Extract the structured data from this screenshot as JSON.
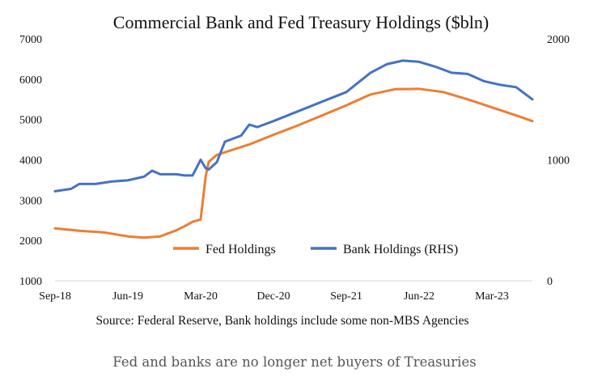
{
  "chart_data": {
    "type": "line",
    "title": "Commercial Bank and Fed Treasury Holdings ($bln)",
    "source": "Source: Federal Reserve, Bank holdings include some non-MBS Agencies",
    "x_tick_labels": [
      "Sep-18",
      "Jun-19",
      "Mar-20",
      "Dec-20",
      "Sep-21",
      "Jun-22",
      "Mar-23"
    ],
    "x_range": [
      "2018-09",
      "2023-08"
    ],
    "y_left": {
      "ticks": [
        "7000",
        "6000",
        "5000",
        "4000",
        "3000",
        "2000",
        "1000"
      ],
      "range": [
        1000,
        7000
      ]
    },
    "y_right": {
      "ticks": [
        "2000",
        "1000",
        "0"
      ],
      "range": [
        0,
        2000
      ]
    },
    "legend_position": "lower-middle",
    "series": [
      {
        "name": "Fed Holdings",
        "axis": "left",
        "color": "#ED7D31",
        "points": [
          [
            "2018-09",
            2300
          ],
          [
            "2018-12",
            2240
          ],
          [
            "2019-03",
            2200
          ],
          [
            "2019-06",
            2100
          ],
          [
            "2019-08",
            2070
          ],
          [
            "2019-10",
            2100
          ],
          [
            "2019-12",
            2250
          ],
          [
            "2020-01",
            2350
          ],
          [
            "2020-02",
            2460
          ],
          [
            "2020-03",
            2520
          ],
          [
            "2020-03-20",
            3600
          ],
          [
            "2020-04",
            3950
          ],
          [
            "2020-05",
            4120
          ],
          [
            "2020-07",
            4250
          ],
          [
            "2020-09",
            4380
          ],
          [
            "2020-12",
            4620
          ],
          [
            "2021-03",
            4850
          ],
          [
            "2021-06",
            5100
          ],
          [
            "2021-09",
            5350
          ],
          [
            "2021-12",
            5620
          ],
          [
            "2022-03",
            5750
          ],
          [
            "2022-06",
            5760
          ],
          [
            "2022-09",
            5680
          ],
          [
            "2022-12",
            5500
          ],
          [
            "2023-03",
            5300
          ],
          [
            "2023-06",
            5100
          ],
          [
            "2023-08",
            4960
          ]
        ]
      },
      {
        "name": "Bank Holdings (RHS)",
        "axis": "right",
        "color": "#4472C4",
        "points": [
          [
            "2018-09",
            740
          ],
          [
            "2018-11",
            760
          ],
          [
            "2018-12",
            800
          ],
          [
            "2019-02",
            800
          ],
          [
            "2019-04",
            820
          ],
          [
            "2019-06",
            830
          ],
          [
            "2019-08",
            860
          ],
          [
            "2019-09",
            910
          ],
          [
            "2019-10",
            880
          ],
          [
            "2019-12",
            880
          ],
          [
            "2020-01",
            870
          ],
          [
            "2020-02",
            870
          ],
          [
            "2020-03",
            1000
          ],
          [
            "2020-03-20",
            930
          ],
          [
            "2020-04",
            920
          ],
          [
            "2020-05",
            980
          ],
          [
            "2020-06",
            1150
          ],
          [
            "2020-08",
            1200
          ],
          [
            "2020-09",
            1290
          ],
          [
            "2020-10",
            1270
          ],
          [
            "2020-12",
            1320
          ],
          [
            "2021-03",
            1400
          ],
          [
            "2021-06",
            1480
          ],
          [
            "2021-09",
            1560
          ],
          [
            "2021-12",
            1720
          ],
          [
            "2022-02",
            1790
          ],
          [
            "2022-04",
            1820
          ],
          [
            "2022-06",
            1810
          ],
          [
            "2022-08",
            1770
          ],
          [
            "2022-10",
            1720
          ],
          [
            "2022-12",
            1710
          ],
          [
            "2023-02",
            1650
          ],
          [
            "2023-04",
            1620
          ],
          [
            "2023-06",
            1600
          ],
          [
            "2023-08",
            1500
          ]
        ]
      }
    ]
  },
  "caption": "Fed and banks are no longer net buyers of Treasuries"
}
